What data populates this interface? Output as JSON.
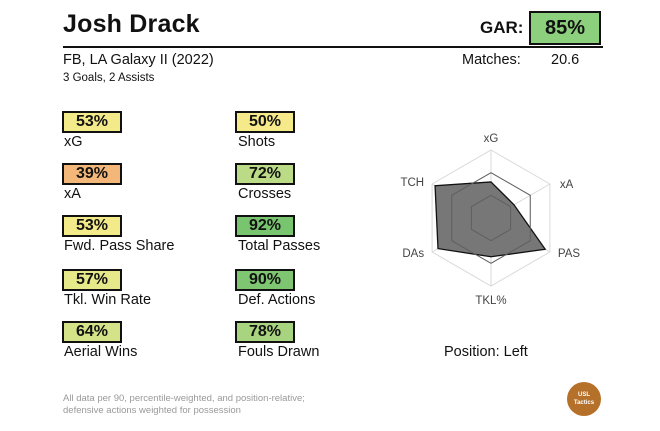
{
  "player": {
    "name": "Josh Drack",
    "subtitle": "FB, LA Galaxy II (2022)",
    "goals_assists": "3 Goals,  2 Assists"
  },
  "gar": {
    "label": "GAR:",
    "value": "85%",
    "color": "#8ccf7d"
  },
  "matches": {
    "label": "Matches:",
    "value": "20.6"
  },
  "stats": [
    {
      "value": "53%",
      "label": "xG",
      "color": "#f3ea8a"
    },
    {
      "value": "39%",
      "label": "xA",
      "color": "#f4b77a"
    },
    {
      "value": "53%",
      "label": "Fwd. Pass Share",
      "color": "#f3ea8a"
    },
    {
      "value": "57%",
      "label": "Tkl. Win Rate",
      "color": "#e6e98a"
    },
    {
      "value": "64%",
      "label": "Aerial Wins",
      "color": "#d4e388"
    },
    {
      "value": "50%",
      "label": "Shots",
      "color": "#f6e98a"
    },
    {
      "value": "72%",
      "label": "Crosses",
      "color": "#bcdb86"
    },
    {
      "value": "92%",
      "label": "Total Passes",
      "color": "#78c46f"
    },
    {
      "value": "90%",
      "label": "Def. Actions",
      "color": "#7ec672"
    },
    {
      "value": "78%",
      "label": "Fouls Drawn",
      "color": "#a9d47f"
    }
  ],
  "radar": {
    "axes": [
      "xG",
      "xA",
      "PAS",
      "TKL%",
      "DAs",
      "TCH"
    ],
    "values": [
      0.53,
      0.39,
      0.92,
      0.57,
      0.9,
      0.95
    ],
    "fill_color": "#777777"
  },
  "position": "Position: Left",
  "footnote": [
    "All data per 90, percentile-weighted, and position-relative;",
    "defensive actions weighted for possession"
  ],
  "logo": [
    "USL",
    "Tactics"
  ]
}
